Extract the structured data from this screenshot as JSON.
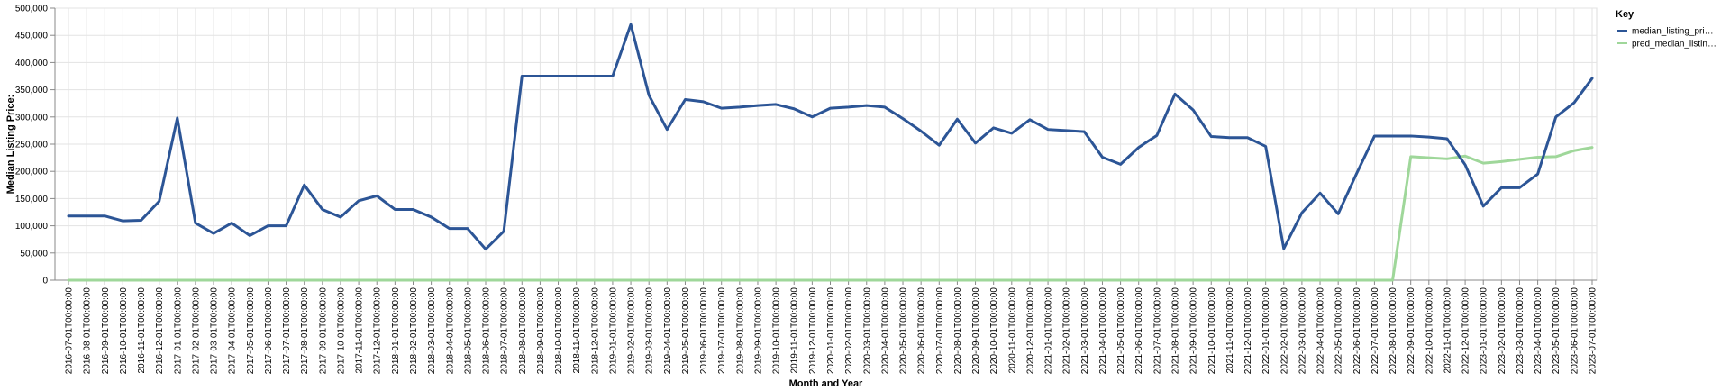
{
  "chart_data": {
    "type": "line",
    "xlabel": "Month and Year",
    "ylabel": "Median Listing Price:",
    "ylim": [
      0,
      500000
    ],
    "yticks": [
      "0",
      "50,000",
      "100,000",
      "150,000",
      "200,000",
      "250,000",
      "300,000",
      "350,000",
      "400,000",
      "450,000",
      "500,000"
    ],
    "grid": true,
    "legend": {
      "title": "Key",
      "placement": "top-right"
    },
    "x": [
      "2016-07-01T00:00:00",
      "2016-08-01T00:00:00",
      "2016-09-01T00:00:00",
      "2016-10-01T00:00:00",
      "2016-11-01T00:00:00",
      "2016-12-01T00:00:00",
      "2017-01-01T00:00:00",
      "2017-02-01T00:00:00",
      "2017-03-01T00:00:00",
      "2017-04-01T00:00:00",
      "2017-05-01T00:00:00",
      "2017-06-01T00:00:00",
      "2017-07-01T00:00:00",
      "2017-08-01T00:00:00",
      "2017-09-01T00:00:00",
      "2017-10-01T00:00:00",
      "2017-11-01T00:00:00",
      "2017-12-01T00:00:00",
      "2018-01-01T00:00:00",
      "2018-02-01T00:00:00",
      "2018-03-01T00:00:00",
      "2018-04-01T00:00:00",
      "2018-05-01T00:00:00",
      "2018-06-01T00:00:00",
      "2018-07-01T00:00:00",
      "2018-08-01T00:00:00",
      "2018-09-01T00:00:00",
      "2018-10-01T00:00:00",
      "2018-11-01T00:00:00",
      "2018-12-01T00:00:00",
      "2019-01-01T00:00:00",
      "2019-02-01T00:00:00",
      "2019-03-01T00:00:00",
      "2019-04-01T00:00:00",
      "2019-05-01T00:00:00",
      "2019-06-01T00:00:00",
      "2019-07-01T00:00:00",
      "2019-08-01T00:00:00",
      "2019-09-01T00:00:00",
      "2019-10-01T00:00:00",
      "2019-11-01T00:00:00",
      "2019-12-01T00:00:00",
      "2020-01-01T00:00:00",
      "2020-02-01T00:00:00",
      "2020-03-01T00:00:00",
      "2020-04-01T00:00:00",
      "2020-05-01T00:00:00",
      "2020-06-01T00:00:00",
      "2020-07-01T00:00:00",
      "2020-08-01T00:00:00",
      "2020-09-01T00:00:00",
      "2020-10-01T00:00:00",
      "2020-11-01T00:00:00",
      "2020-12-01T00:00:00",
      "2021-01-01T00:00:00",
      "2021-02-01T00:00:00",
      "2021-03-01T00:00:00",
      "2021-04-01T00:00:00",
      "2021-05-01T00:00:00",
      "2021-06-01T00:00:00",
      "2021-07-01T00:00:00",
      "2021-08-01T00:00:00",
      "2021-09-01T00:00:00",
      "2021-10-01T00:00:00",
      "2021-11-01T00:00:00",
      "2021-12-01T00:00:00",
      "2022-01-01T00:00:00",
      "2022-02-01T00:00:00",
      "2022-03-01T00:00:00",
      "2022-04-01T00:00:00",
      "2022-05-01T00:00:00",
      "2022-06-01T00:00:00",
      "2022-07-01T00:00:00",
      "2022-08-01T00:00:00",
      "2022-09-01T00:00:00",
      "2022-10-01T00:00:00",
      "2022-11-01T00:00:00",
      "2022-12-01T00:00:00",
      "2023-01-01T00:00:00",
      "2023-02-01T00:00:00",
      "2023-03-01T00:00:00",
      "2023-04-01T00:00:00",
      "2023-05-01T00:00:00",
      "2023-06-01T00:00:00",
      "2023-07-01T00:00:00"
    ],
    "series": [
      {
        "name": "median_listing_pri…",
        "color": "#2c5596",
        "values": [
          118000,
          118000,
          118000,
          109000,
          110000,
          145000,
          298000,
          105000,
          86000,
          105000,
          82000,
          100000,
          100000,
          175000,
          130000,
          116000,
          146000,
          155000,
          130000,
          130000,
          116000,
          95000,
          95000,
          57000,
          90000,
          375000,
          375000,
          375000,
          375000,
          375000,
          375000,
          470000,
          340000,
          277000,
          332000,
          328000,
          316000,
          318000,
          321000,
          323000,
          315000,
          300000,
          316000,
          318000,
          321000,
          318000,
          297000,
          274000,
          248000,
          296000,
          252000,
          280000,
          270000,
          295000,
          277000,
          275000,
          273000,
          226000,
          213000,
          244000,
          266000,
          342000,
          313000,
          264000,
          262000,
          262000,
          246000,
          58000,
          124000,
          160000,
          122000,
          195000,
          265000,
          265000,
          265000,
          263000,
          260000,
          212000,
          136000,
          170000,
          170000,
          195000,
          300000,
          326000,
          371000
        ]
      },
      {
        "name": "pred_median_listin…",
        "color": "#9fd79a",
        "values": [
          0,
          0,
          0,
          0,
          0,
          0,
          0,
          0,
          0,
          0,
          0,
          0,
          0,
          0,
          0,
          0,
          0,
          0,
          0,
          0,
          0,
          0,
          0,
          0,
          0,
          0,
          0,
          0,
          0,
          0,
          0,
          0,
          0,
          0,
          0,
          0,
          0,
          0,
          0,
          0,
          0,
          0,
          0,
          0,
          0,
          0,
          0,
          0,
          0,
          0,
          0,
          0,
          0,
          0,
          0,
          0,
          0,
          0,
          0,
          0,
          0,
          0,
          0,
          0,
          0,
          0,
          0,
          0,
          0,
          0,
          0,
          0,
          0,
          0,
          227000,
          225000,
          223000,
          228000,
          215000,
          218000,
          222000,
          226000,
          227000,
          238000,
          244000
        ]
      }
    ]
  }
}
